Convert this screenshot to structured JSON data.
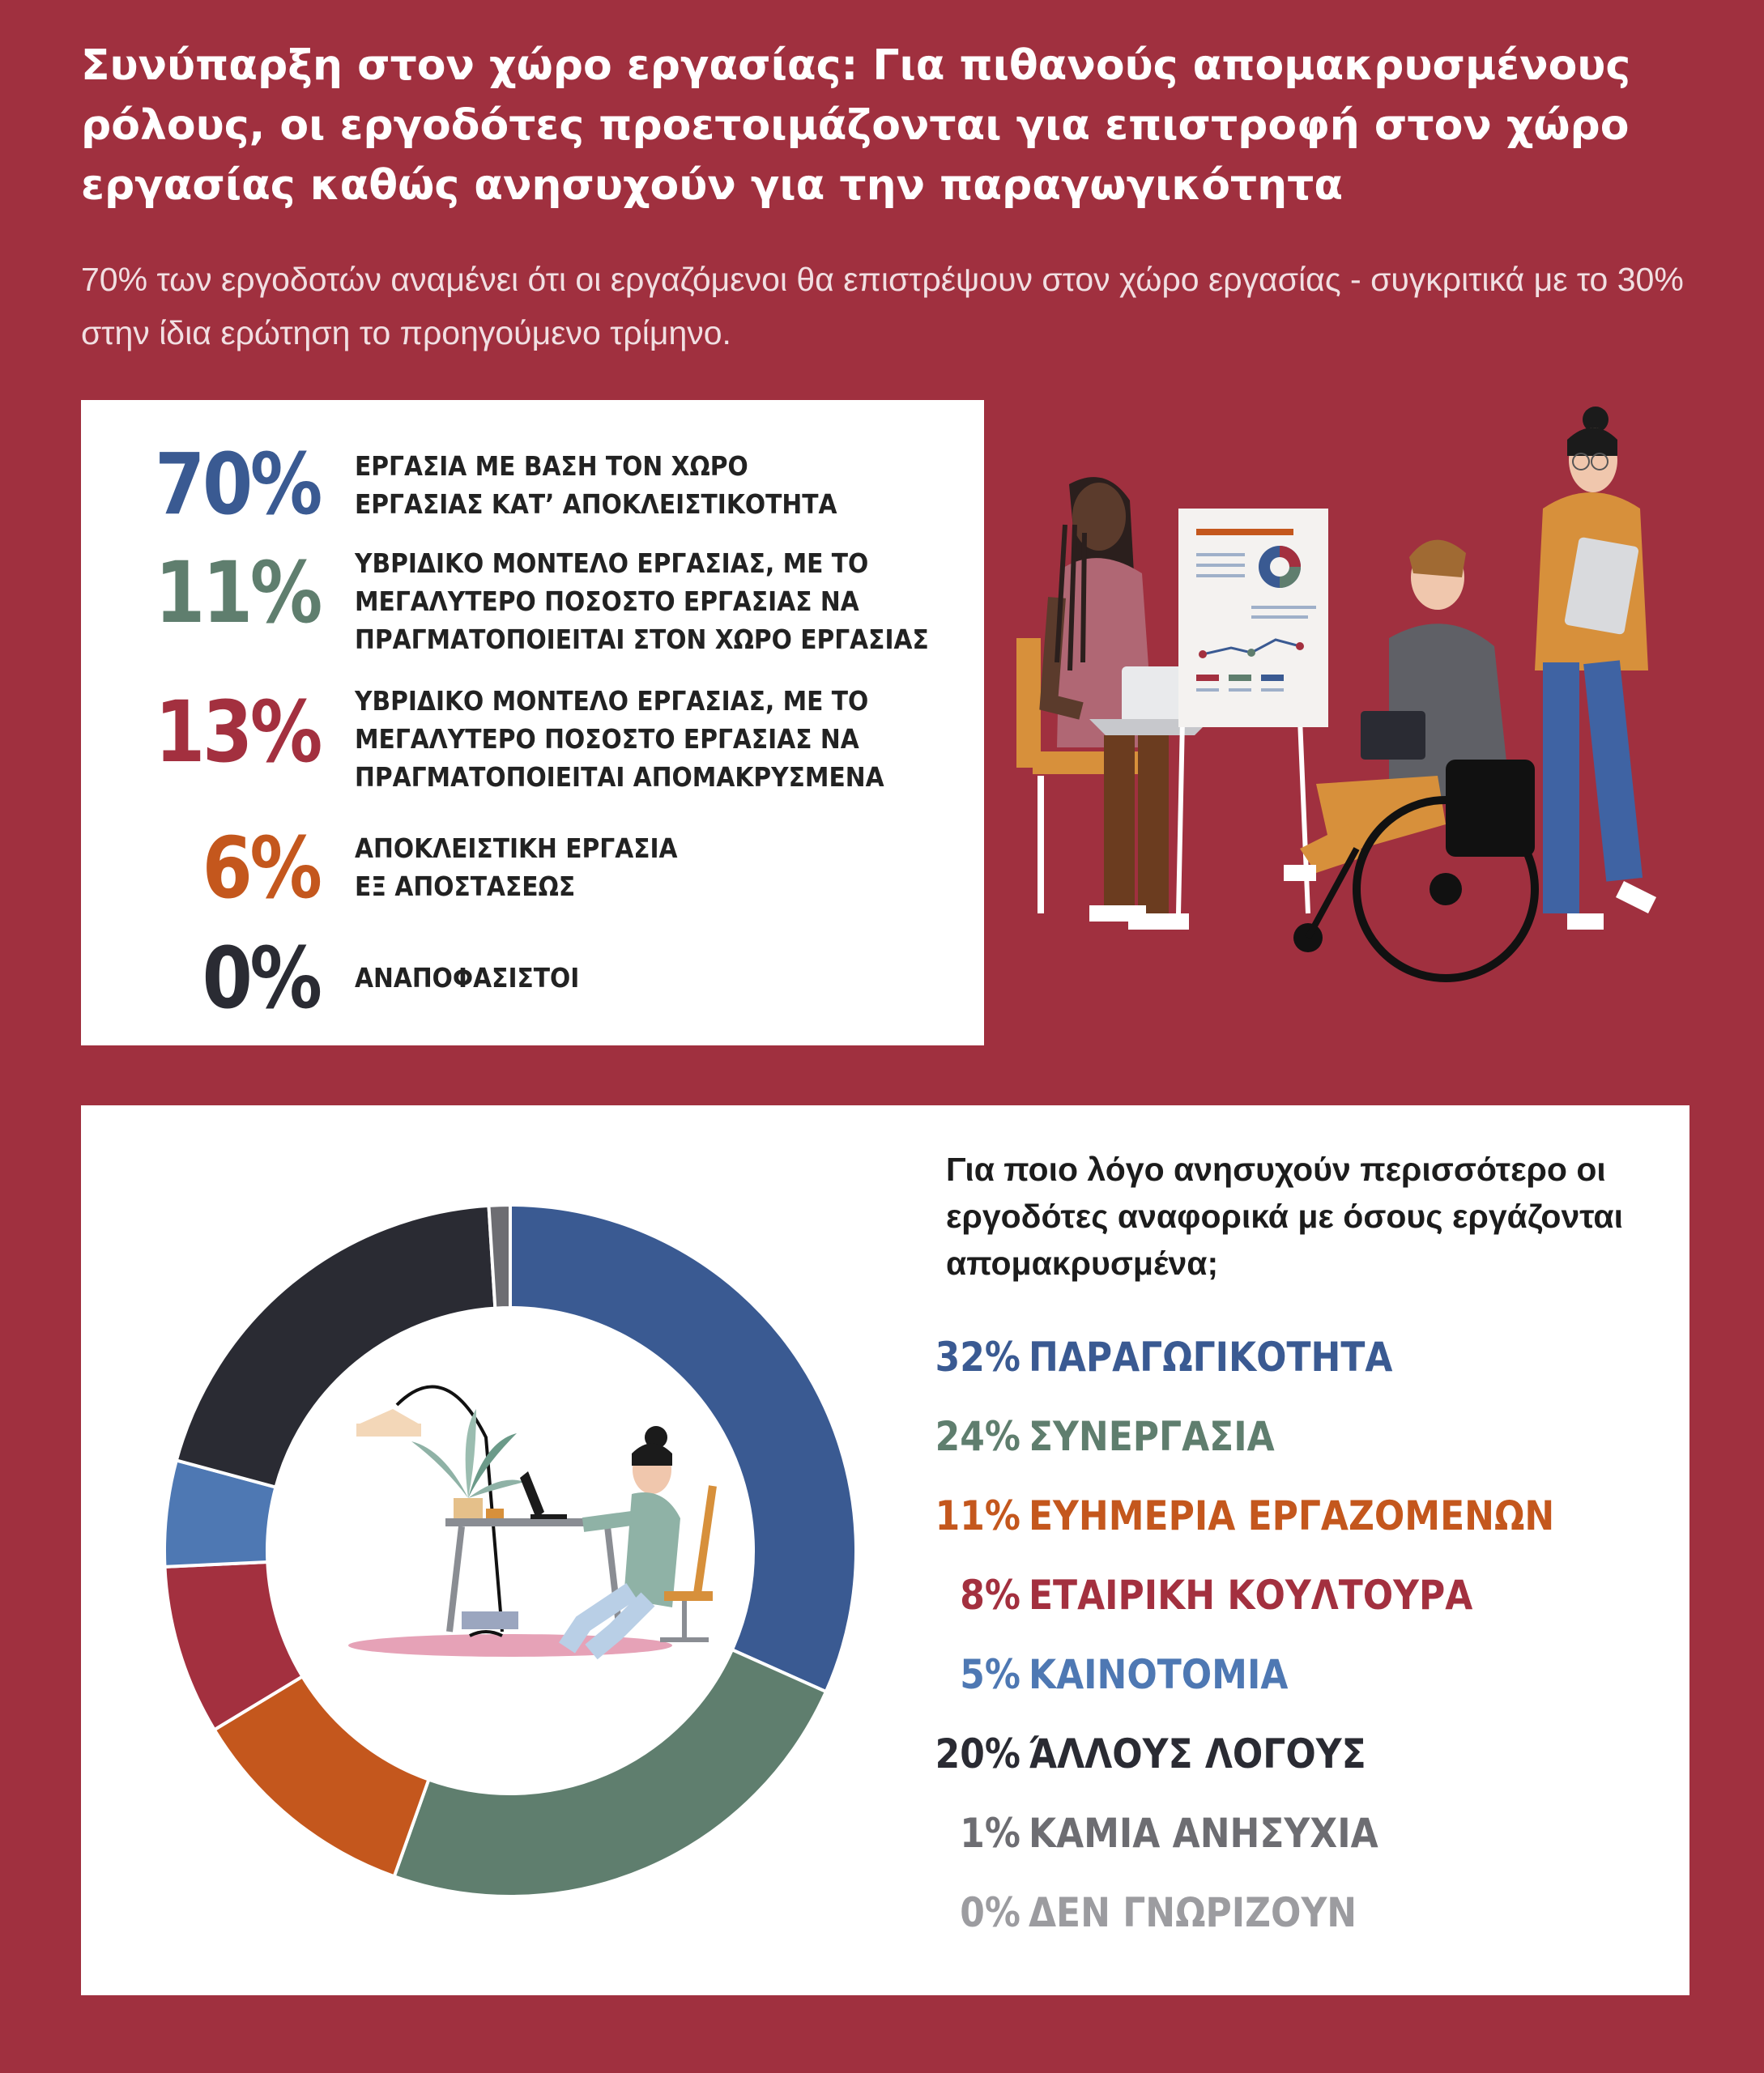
{
  "header": {
    "title": "Συνύπαρξη στον χώρο εργασίας: Για πιθανούς απομακρυσμένους ρόλους, οι εργοδότες προετοιμάζονται για επιστροφή στον χώρο εργασίας καθώς ανησυχούν για την παραγωγικότητα",
    "subtitle": "70% των εργοδοτών αναμένει ότι οι εργαζόμενοι θα επιστρέψουν στον χώρο εργασίας - συγκριτικά με το 30% στην ίδια ερώτηση το προηγούμενο τρίμηνο."
  },
  "work_models": [
    {
      "value": "70%",
      "label": "ΕΡΓΑΣΙΑ ΜΕ ΒΑΣΗ ΤΟΝ ΧΩΡΟ\nΕΡΓΑΣΙΑΣ ΚΑΤ’ ΑΠΟΚΛΕΙΣΤΙΚΟΤΗΤΑ",
      "color": "#3a5a92"
    },
    {
      "value": "11%",
      "label": "ΥΒΡΙΔΙΚΟ ΜΟΝΤΕΛΟ ΕΡΓΑΣΙΑΣ, ΜΕ ΤΟ\nΜΕΓΑΛΥΤΕΡΟ ΠΟΣΟΣΤΟ ΕΡΓΑΣΙΑΣ ΝΑ\nΠΡΑΓΜΑΤΟΠΟΙΕΙΤΑΙ ΣΤΟΝ ΧΩΡΟ ΕΡΓΑΣΙΑΣ",
      "color": "#5f7e6e"
    },
    {
      "value": "13%",
      "label": "ΥΒΡΙΔΙΚΟ ΜΟΝΤΕΛΟ ΕΡΓΑΣΙΑΣ, ΜΕ ΤΟ\nΜΕΓΑΛΥΤΕΡΟ ΠΟΣΟΣΤΟ ΕΡΓΑΣΙΑΣ ΝΑ\nΠΡΑΓΜΑΤΟΠΟΙΕΙΤΑΙ ΑΠΟΜΑΚΡΥΣΜΕΝΑ",
      "color": "#a3303f"
    },
    {
      "value": "6%",
      "label": "ΑΠΟΚΛΕΙΣΤΙΚΗ ΕΡΓΑΣΙΑ\nΕΞ ΑΠΟΣΤΑΣΕΩΣ",
      "color": "#c4571d"
    },
    {
      "value": "0%",
      "label": "ΑΝΑΠΟΦΑΣΙΣΤΟΙ",
      "color": "#2a2b33"
    }
  ],
  "chart_data": {
    "type": "pie",
    "title": "Για ποιο λόγο ανησυχούν περισσότερο οι εργοδότες αναφορικά με όσους εργάζονται απομακρυσμένα;",
    "categories": [
      "ΠΑΡΑΓΩΓΙΚΟΤΗΤΑ",
      "ΣΥΝΕΡΓΑΣΙΑ",
      "ΕΥΗΜΕΡΙΑ ΕΡΓΑΖΟΜΕΝΩΝ",
      "ΕΤΑΙΡΙΚΗ ΚΟΥΛΤΟΥΡΑ",
      "ΚΑΙΝΟΤΟΜΙΑ",
      "ΆΛΛΟΥΣ ΛΟΓΟΥΣ",
      "ΚΑΜΙΑ ΑΝΗΣΥΧΙΑ",
      "ΔΕΝ ΓΝΩΡΙΖΟΥΝ"
    ],
    "values": [
      32,
      24,
      11,
      8,
      5,
      20,
      1,
      0
    ],
    "labels": [
      "32%",
      "24%",
      "11%",
      "8%",
      "5%",
      "20%",
      "1%",
      "0%"
    ],
    "colors": [
      "#3a5a92",
      "#5f7e6e",
      "#c4571d",
      "#a3303f",
      "#4e78b3",
      "#2a2b33",
      "#6d6d72",
      "#9c9ca0"
    ],
    "donut": true
  }
}
